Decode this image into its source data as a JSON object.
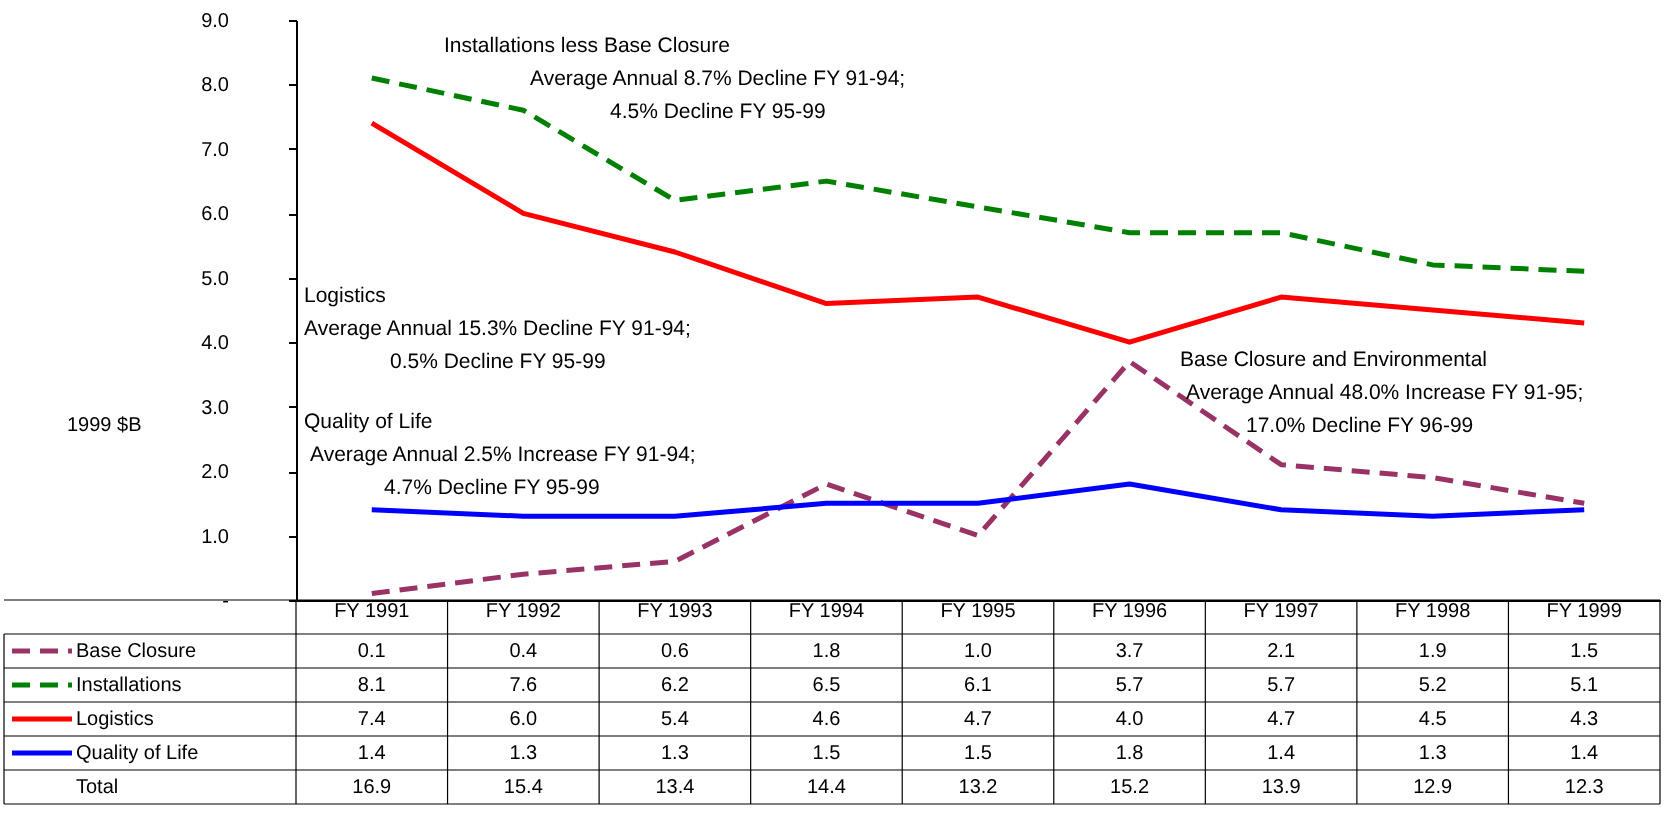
{
  "chart_data": {
    "type": "line",
    "ylabel": "1999 $B",
    "categories": [
      "FY 1991",
      "FY 1992",
      "FY 1993",
      "FY 1994",
      "FY 1995",
      "FY 1996",
      "FY 1997",
      "FY 1998",
      "FY 1999"
    ],
    "series": [
      {
        "name": "Base Closure",
        "color": "#993366",
        "line_style": "dashed",
        "values": [
          0.1,
          0.4,
          0.6,
          1.8,
          1.0,
          3.7,
          2.1,
          1.9,
          1.5
        ],
        "value_labels": [
          "0.1",
          "0.4",
          "0.6",
          "1.8",
          "1.0",
          "3.7",
          "2.1",
          "1.9",
          "1.5"
        ]
      },
      {
        "name": "Installations",
        "color": "#008000",
        "line_style": "dashed",
        "values": [
          8.1,
          7.6,
          6.2,
          6.5,
          6.1,
          5.7,
          5.7,
          5.2,
          5.1
        ],
        "value_labels": [
          "8.1",
          "7.6",
          "6.2",
          "6.5",
          "6.1",
          "5.7",
          "5.7",
          "5.2",
          "5.1"
        ]
      },
      {
        "name": "Logistics",
        "color": "#ff0000",
        "line_style": "solid",
        "values": [
          7.4,
          6.0,
          5.4,
          4.6,
          4.7,
          4.0,
          4.7,
          4.5,
          4.3
        ],
        "value_labels": [
          "7.4",
          "6.0",
          "5.4",
          "4.6",
          "4.7",
          "4.0",
          "4.7",
          "4.5",
          "4.3"
        ]
      },
      {
        "name": "Quality of Life",
        "color": "#0000ff",
        "line_style": "solid",
        "values": [
          1.4,
          1.3,
          1.3,
          1.5,
          1.5,
          1.8,
          1.4,
          1.3,
          1.4
        ],
        "value_labels": [
          "1.4",
          "1.3",
          "1.3",
          "1.5",
          "1.5",
          "1.8",
          "1.4",
          "1.3",
          "1.4"
        ]
      }
    ],
    "totals": [
      "16.9",
      "15.4",
      "13.4",
      "14.4",
      "13.2",
      "15.2",
      "13.9",
      "12.9",
      "12.3"
    ],
    "legend": "bottom left",
    "ylim": [
      0,
      9
    ],
    "yticks": [
      {
        "value": 0,
        "label": "-"
      },
      {
        "value": 1,
        "label": "1.0"
      },
      {
        "value": 2,
        "label": "2.0"
      },
      {
        "value": 3,
        "label": "3.0"
      },
      {
        "value": 4,
        "label": "4.0"
      },
      {
        "value": 5,
        "label": "5.0"
      },
      {
        "value": 6,
        "label": "6.0"
      },
      {
        "value": 7,
        "label": "7.0"
      },
      {
        "value": 8,
        "label": "8.0"
      },
      {
        "value": 9,
        "label": "9.0"
      }
    ],
    "annotations": [
      "Installations less Base Closure\nAverage Annual 8.7% Decline FY 91-94;\n4.5% Decline FY 95-99",
      "Logistics\nAverage Annual 15.3% Decline FY 91-94;\n0.5% Decline FY 95-99",
      "Base Closure and Environmental\nAverage Annual 48.0% Increase FY 91-95;\n17.0% Decline FY 96-99",
      "Quality of Life\nAverage Annual 2.5% Increase FY 91-94;\n4.7% Decline FY 95-99",
      "Total"
    ]
  }
}
